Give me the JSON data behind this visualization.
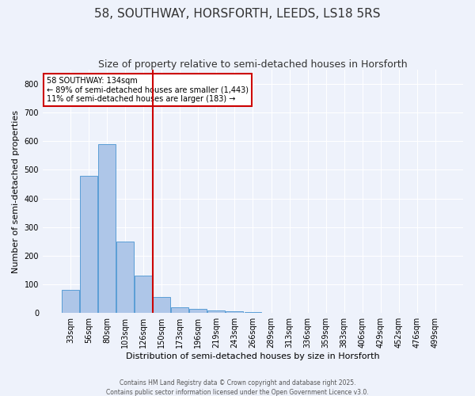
{
  "title": "58, SOUTHWAY, HORSFORTH, LEEDS, LS18 5RS",
  "subtitle": "Size of property relative to semi-detached houses in Horsforth",
  "xlabel": "Distribution of semi-detached houses by size in Horsforth",
  "ylabel": "Number of semi-detached properties",
  "bar_labels": [
    "33sqm",
    "56sqm",
    "80sqm",
    "103sqm",
    "126sqm",
    "150sqm",
    "173sqm",
    "196sqm",
    "219sqm",
    "243sqm",
    "266sqm",
    "289sqm",
    "313sqm",
    "336sqm",
    "359sqm",
    "383sqm",
    "406sqm",
    "429sqm",
    "452sqm",
    "476sqm",
    "499sqm"
  ],
  "bar_values": [
    80,
    480,
    590,
    250,
    130,
    55,
    20,
    15,
    10,
    5,
    4,
    0,
    0,
    0,
    0,
    0,
    0,
    0,
    0,
    0,
    0
  ],
  "bar_color": "#aec6e8",
  "bar_edgecolor": "#5a9ed6",
  "ylim": [
    0,
    850
  ],
  "yticks": [
    0,
    100,
    200,
    300,
    400,
    500,
    600,
    700,
    800
  ],
  "vline_color": "#cc0000",
  "annotation_title": "58 SOUTHWAY: 134sqm",
  "annotation_line1": "← 89% of semi-detached houses are smaller (1,443)",
  "annotation_line2": "11% of semi-detached houses are larger (183) →",
  "footer1": "Contains HM Land Registry data © Crown copyright and database right 2025.",
  "footer2": "Contains public sector information licensed under the Open Government Licence v3.0.",
  "bg_color": "#eef2fb",
  "grid_color": "#ffffff",
  "title_fontsize": 11,
  "subtitle_fontsize": 9,
  "tick_fontsize": 7,
  "ylabel_fontsize": 8,
  "xlabel_fontsize": 8
}
